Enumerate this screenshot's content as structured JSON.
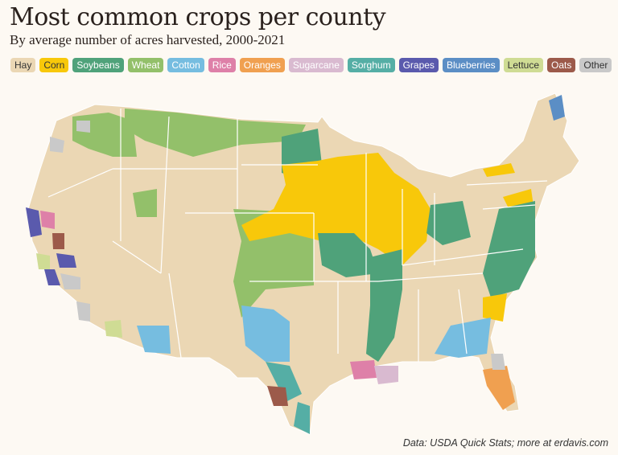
{
  "title": "Most common crops per county",
  "subtitle": "By average number of acres harvested, 2000-2021",
  "legend": [
    {
      "label": "Hay",
      "color": "#ebd7b4",
      "text": "#333"
    },
    {
      "label": "Corn",
      "color": "#f8c80a",
      "text": "#333"
    },
    {
      "label": "Soybeans",
      "color": "#4fa27a",
      "text": "#fff"
    },
    {
      "label": "Wheat",
      "color": "#93c06a",
      "text": "#fff"
    },
    {
      "label": "Cotton",
      "color": "#76bde0",
      "text": "#fff"
    },
    {
      "label": "Rice",
      "color": "#de80a8",
      "text": "#fff"
    },
    {
      "label": "Oranges",
      "color": "#f0a050",
      "text": "#fff"
    },
    {
      "label": "Sugarcane",
      "color": "#d9bad0",
      "text": "#fff"
    },
    {
      "label": "Sorghum",
      "color": "#55aea5",
      "text": "#fff"
    },
    {
      "label": "Grapes",
      "color": "#5a5aad",
      "text": "#fff"
    },
    {
      "label": "Blueberries",
      "color": "#5b8ec5",
      "text": "#fff"
    },
    {
      "label": "Lettuce",
      "color": "#cfdc94",
      "text": "#333"
    },
    {
      "label": "Oats",
      "color": "#9c5a4a",
      "text": "#fff"
    },
    {
      "label": "Other",
      "color": "#c9c9c9",
      "text": "#333"
    }
  ],
  "source": "Data: USDA Quick Stats; more at erdavis.com"
}
